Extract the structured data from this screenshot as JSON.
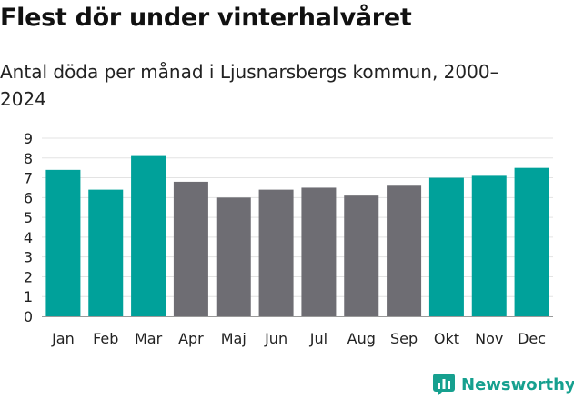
{
  "header": {
    "title": "Flest dör under vinterhalvåret",
    "subtitle": "Antal döda per månad i Ljusnarsbergs kommun, 2000–2024"
  },
  "brand": {
    "name": "Newsworthy",
    "icon": "newsworthy-logo-icon"
  },
  "colors": {
    "winter": "#00a19a",
    "summer": "#6e6d73",
    "grid": "#e3e3e3",
    "axis": "#9a9a9a"
  },
  "chart_data": {
    "type": "bar",
    "categories": [
      "Jan",
      "Feb",
      "Mar",
      "Apr",
      "Maj",
      "Jun",
      "Jul",
      "Aug",
      "Sep",
      "Okt",
      "Nov",
      "Dec"
    ],
    "values": [
      7.4,
      6.4,
      8.1,
      6.8,
      6.0,
      6.4,
      6.5,
      6.1,
      6.6,
      7.0,
      7.1,
      7.5
    ],
    "highlight": [
      true,
      true,
      true,
      false,
      false,
      false,
      false,
      false,
      false,
      true,
      true,
      true
    ],
    "yticks": [
      0,
      1,
      2,
      3,
      4,
      5,
      6,
      7,
      8,
      9
    ],
    "ylim": [
      0,
      9
    ],
    "xlabel": "",
    "ylabel": "",
    "grid": true
  }
}
